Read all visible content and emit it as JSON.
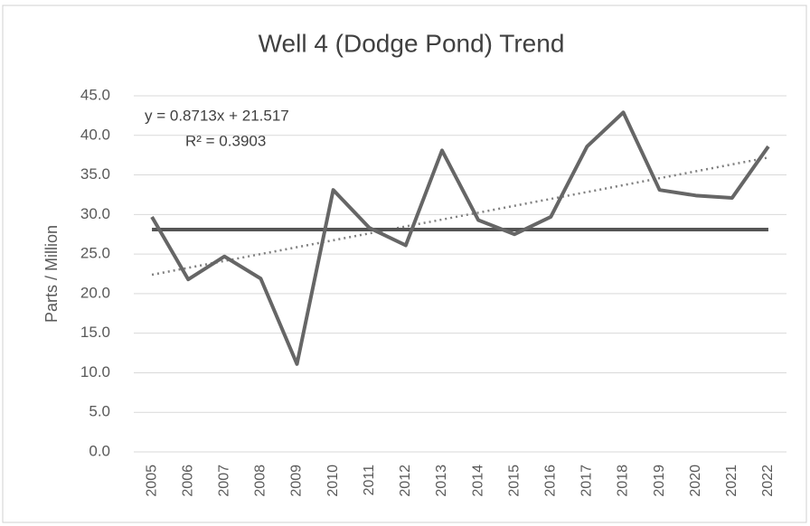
{
  "chart_data": {
    "type": "line",
    "title": "Well 4 (Dodge Pond) Trend",
    "y_label": "Parts / Million",
    "categories": [
      "2005",
      "2006",
      "2007",
      "2008",
      "2009",
      "2010",
      "2011",
      "2012",
      "2013",
      "2014",
      "2015",
      "2016",
      "2017",
      "2018",
      "2019",
      "2020",
      "2021",
      "2022"
    ],
    "series": [
      {
        "color": "#666666",
        "line_style": "solid",
        "values": [
          29.7,
          21.8,
          24.7,
          21.9,
          11.1,
          33.1,
          28.3,
          26.1,
          38.1,
          29.3,
          27.5,
          29.7,
          38.6,
          42.9,
          33.1,
          32.4,
          32.1,
          38.6
        ]
      },
      {
        "color": "#555555",
        "line_style": "solid",
        "values": [
          28.1,
          28.1,
          28.1,
          28.1,
          28.1,
          28.1,
          28.1,
          28.1,
          28.1,
          28.1,
          28.1,
          28.1,
          28.1,
          28.1,
          28.1,
          28.1,
          28.1,
          28.1
        ]
      },
      {
        "color": "#808080",
        "line_style": "dotted",
        "values": [
          22.39,
          23.26,
          24.13,
          25.0,
          25.87,
          26.74,
          27.62,
          28.49,
          29.36,
          30.23,
          31.1,
          31.97,
          32.84,
          33.71,
          34.59,
          35.46,
          36.33,
          37.2
        ]
      }
    ],
    "annotations": [
      "y = 0.8713x + 21.517",
      "R² = 0.3903"
    ],
    "ylim": [
      0,
      45
    ],
    "yticks": [
      {
        "value": 0,
        "label": "0.0"
      },
      {
        "value": 5,
        "label": "5.0"
      },
      {
        "value": 10,
        "label": "10.0"
      },
      {
        "value": 15,
        "label": "15.0"
      },
      {
        "value": 20,
        "label": "20.0"
      },
      {
        "value": 25,
        "label": "25.0"
      },
      {
        "value": 30,
        "label": "30.0"
      },
      {
        "value": 35,
        "label": "35.0"
      },
      {
        "value": 40,
        "label": "40.0"
      },
      {
        "value": 45,
        "label": "45.0"
      }
    ],
    "grid": true
  }
}
